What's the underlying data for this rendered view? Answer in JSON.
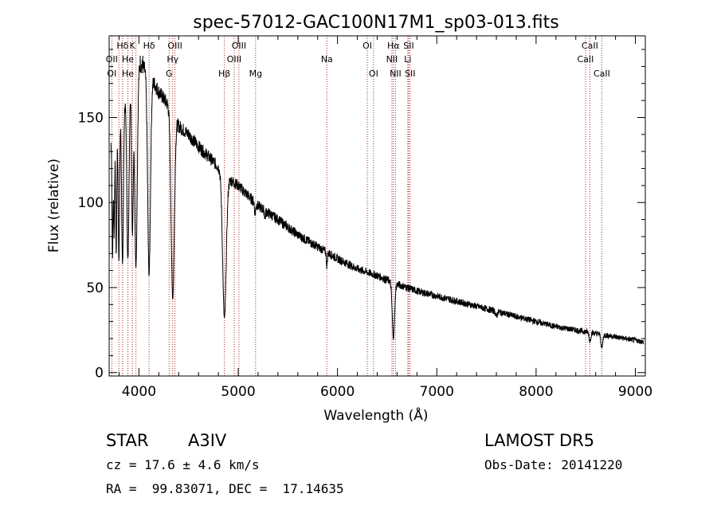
{
  "chart_data": {
    "type": "line",
    "title": "spec-57012-GAC100N17M1_sp03-013.fits",
    "xlabel": "Wavelength (Å)",
    "ylabel": "Flux (relative)",
    "xlim": [
      3700,
      9100
    ],
    "ylim": [
      -2,
      198
    ],
    "xticks": [
      4000,
      5000,
      6000,
      7000,
      8000,
      9000
    ],
    "yticks": [
      0,
      50,
      100,
      150
    ],
    "grid": false,
    "line_color": "#000000",
    "marker_color": "#b22222",
    "continuum": {
      "x": [
        3720,
        3800,
        3900,
        4000,
        4100,
        4200,
        4300,
        4400,
        4500,
        4600,
        4700,
        4800,
        4900,
        5000,
        5100,
        5200,
        5400,
        5600,
        5800,
        6000,
        6200,
        6400,
        6600,
        6800,
        7000,
        7200,
        7400,
        7600,
        7800,
        8000,
        8200,
        8400,
        8600,
        8800,
        9000,
        9080
      ],
      "y": [
        135,
        152,
        168,
        182,
        176,
        165,
        157,
        145,
        140,
        133,
        127,
        121,
        114,
        110,
        104,
        98,
        90,
        81,
        74,
        67,
        61,
        57,
        52,
        48,
        45,
        42,
        39,
        36,
        33,
        30,
        27,
        25,
        23,
        21,
        19,
        18
      ]
    },
    "absorption_lines": [
      {
        "x": 3734,
        "depth": 70,
        "width": 5
      },
      {
        "x": 3750,
        "depth": 60,
        "width": 5
      },
      {
        "x": 3771,
        "depth": 75,
        "width": 6
      },
      {
        "x": 3798,
        "depth": 85,
        "width": 7
      },
      {
        "x": 3835,
        "depth": 95,
        "width": 9
      },
      {
        "x": 3889,
        "depth": 100,
        "width": 11
      },
      {
        "x": 3934,
        "depth": 90,
        "width": 8
      },
      {
        "x": 3970,
        "depth": 115,
        "width": 13
      },
      {
        "x": 4102,
        "depth": 118,
        "width": 14
      },
      {
        "x": 4340,
        "depth": 108,
        "width": 16
      },
      {
        "x": 4861,
        "depth": 85,
        "width": 18
      },
      {
        "x": 5170,
        "depth": 6,
        "width": 6
      },
      {
        "x": 5270,
        "depth": 4,
        "width": 5
      },
      {
        "x": 5893,
        "depth": 8,
        "width": 5
      },
      {
        "x": 6563,
        "depth": 32,
        "width": 12
      },
      {
        "x": 7600,
        "depth": 3,
        "width": 8
      },
      {
        "x": 8542,
        "depth": 5,
        "width": 8
      },
      {
        "x": 8662,
        "depth": 8,
        "width": 9
      }
    ],
    "line_labels": [
      {
        "text": "Hδ",
        "x": 4102,
        "row": 1
      },
      {
        "text": "K",
        "x": 3934,
        "row": 1
      },
      {
        "text": "Hδ",
        "x": 3835,
        "row": 1
      },
      {
        "text": "OIII",
        "x": 4363,
        "row": 1
      },
      {
        "text": "OIII",
        "x": 5007,
        "row": 1
      },
      {
        "text": "OI",
        "x": 6300,
        "row": 1
      },
      {
        "text": "Hα",
        "x": 6563,
        "row": 1
      },
      {
        "text": "SII",
        "x": 6717,
        "row": 1
      },
      {
        "text": "CaII",
        "x": 8542,
        "row": 1
      },
      {
        "text": "OII",
        "x": 3727,
        "row": 2
      },
      {
        "text": "He",
        "x": 3889,
        "row": 2
      },
      {
        "text": "II",
        "x": 4026,
        "row": 2
      },
      {
        "text": "Hγ",
        "x": 4340,
        "row": 2
      },
      {
        "text": "OIII",
        "x": 4959,
        "row": 2
      },
      {
        "text": "Na",
        "x": 5893,
        "row": 2
      },
      {
        "text": "NII",
        "x": 6548,
        "row": 2
      },
      {
        "text": "Li",
        "x": 6708,
        "row": 2
      },
      {
        "text": "CaII",
        "x": 8498,
        "row": 2
      },
      {
        "text": "OI",
        "x": 3727,
        "row": 3
      },
      {
        "text": "He",
        "x": 3889,
        "row": 3
      },
      {
        "text": "G",
        "x": 4304,
        "row": 3
      },
      {
        "text": "Hβ",
        "x": 4861,
        "row": 3
      },
      {
        "text": "Mg",
        "x": 5175,
        "row": 3
      },
      {
        "text": "OI",
        "x": 6363,
        "row": 3
      },
      {
        "text": "NII",
        "x": 6584,
        "row": 3
      },
      {
        "text": "SII",
        "x": 6731,
        "row": 3
      },
      {
        "text": "CaII",
        "x": 8662,
        "row": 3
      }
    ],
    "marker_lines": [
      3727,
      3798,
      3835,
      3889,
      3934,
      3970,
      4102,
      4304,
      4340,
      4363,
      4861,
      4959,
      5007,
      5175,
      5893,
      6300,
      6363,
      6548,
      6563,
      6584,
      6708,
      6717,
      6731,
      8498,
      8542,
      8662
    ]
  },
  "info": {
    "class": "STAR",
    "subclass": "A3IV",
    "cz": "cz = 17.6 ± 4.6 km/s",
    "radec": "RA =  99.83071, DEC =  17.14635",
    "survey": "LAMOST DR5",
    "obsdate": "Obs-Date: 20141220"
  }
}
